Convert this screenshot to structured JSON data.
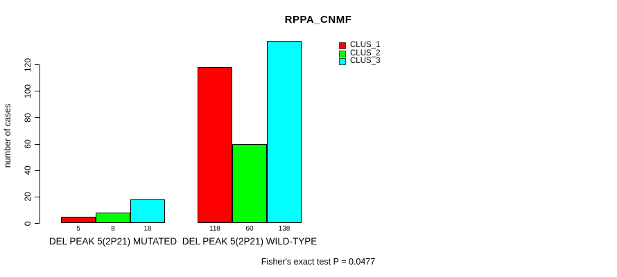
{
  "title": "RPPA_CNMF",
  "ylabel": "number of cases",
  "annotation": "Fisher's exact test P = 0.0477",
  "legend": {
    "items": [
      {
        "label": "CLUS_1",
        "color": "#FF0000"
      },
      {
        "label": "CLUS_2",
        "color": "#00FF00"
      },
      {
        "label": "CLUS_3",
        "color": "#00FFFF"
      }
    ]
  },
  "chart_data": {
    "type": "bar",
    "title": "RPPA_CNMF",
    "xlabel": "",
    "ylabel": "number of cases",
    "categories": [
      "DEL PEAK 5(2P21) MUTATED",
      "DEL PEAK 5(2P21) WILD-TYPE"
    ],
    "series": [
      {
        "name": "CLUS_1",
        "color": "#FF0000",
        "values": [
          5,
          118
        ]
      },
      {
        "name": "CLUS_2",
        "color": "#00FF00",
        "values": [
          8,
          60
        ]
      },
      {
        "name": "CLUS_3",
        "color": "#00FFFF",
        "values": [
          18,
          138
        ]
      }
    ],
    "bar_labels": [
      [
        5,
        8,
        18
      ],
      [
        118,
        60,
        138
      ]
    ],
    "yticks": [
      0,
      20,
      40,
      60,
      80,
      100,
      120
    ],
    "ylim": [
      0,
      140
    ],
    "grid": false,
    "legend_position": "top-right",
    "annotation": "Fisher's exact test P = 0.0477"
  }
}
